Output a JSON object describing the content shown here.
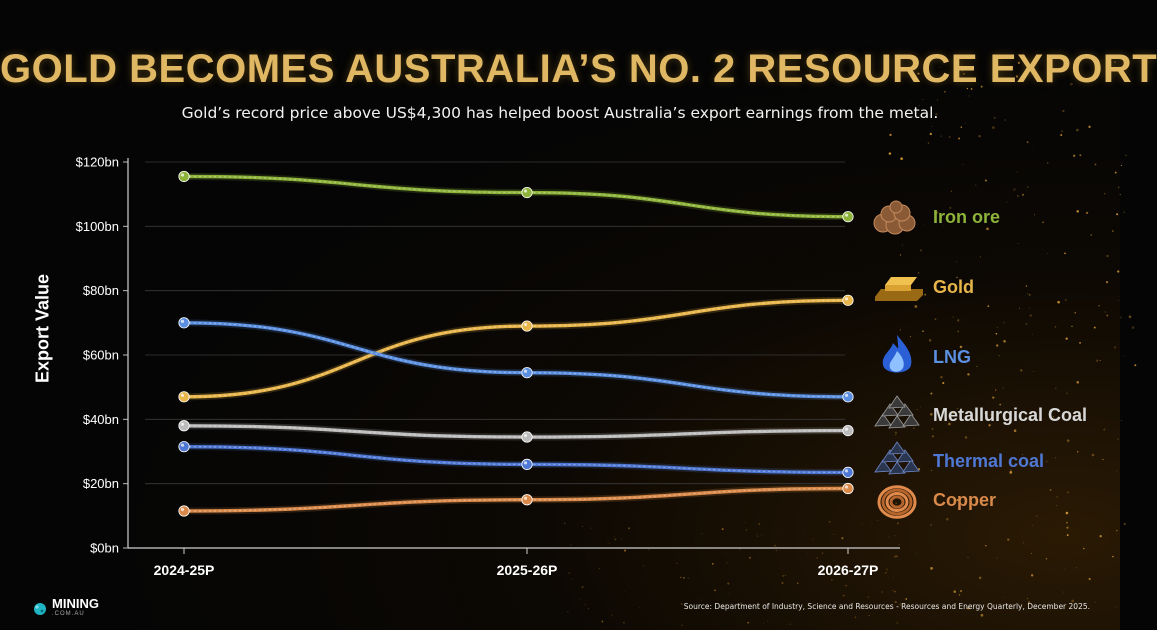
{
  "title": "GOLD BECOMES AUSTRALIA’S NO. 2 RESOURCE EXPORT",
  "subtitle": "Gold’s record price above US$4,300 has helped boost Australia’s export earnings from the metal.",
  "logo": {
    "name": "MINING",
    "sub": ".COM.AU"
  },
  "source": "Source: Department of Industry, Science and Resources - Resources and Energy Quarterly, December 2025.",
  "chart_data": {
    "type": "line",
    "categories": [
      "2024-25P",
      "2025-26P",
      "2026-27P"
    ],
    "ylabel": "Export Value",
    "xlabel": "",
    "ylim": [
      0,
      120
    ],
    "yticks": [
      0,
      20,
      40,
      60,
      80,
      100,
      120
    ],
    "ytick_labels": [
      "$0bn",
      "$20bn",
      "$40bn",
      "$60bn",
      "$80bn",
      "$100bn",
      "$120bn"
    ],
    "grid": true,
    "legend": "right, labels at line ends",
    "series": [
      {
        "name": "Iron ore",
        "values": [
          115.5,
          110.5,
          103
        ],
        "color": "#8db33a",
        "icon": "iron-ore-icon"
      },
      {
        "name": "Gold",
        "values": [
          47,
          69,
          77
        ],
        "color": "#e8b54a",
        "icon": "gold-bars-icon"
      },
      {
        "name": "LNG",
        "values": [
          70,
          54.5,
          47
        ],
        "color": "#5b8fe0",
        "icon": "flame-icon"
      },
      {
        "name": "Metallurgical Coal",
        "values": [
          38,
          34.5,
          36.5
        ],
        "color": "#bcbcbc",
        "icon": "coal-icon"
      },
      {
        "name": "Thermal coal",
        "values": [
          31.5,
          26,
          23.5
        ],
        "color": "#4f78d4",
        "icon": "coal-icon"
      },
      {
        "name": "Copper",
        "values": [
          11.5,
          15,
          18.5
        ],
        "color": "#d98a4a",
        "icon": "copper-coil-icon"
      }
    ]
  }
}
